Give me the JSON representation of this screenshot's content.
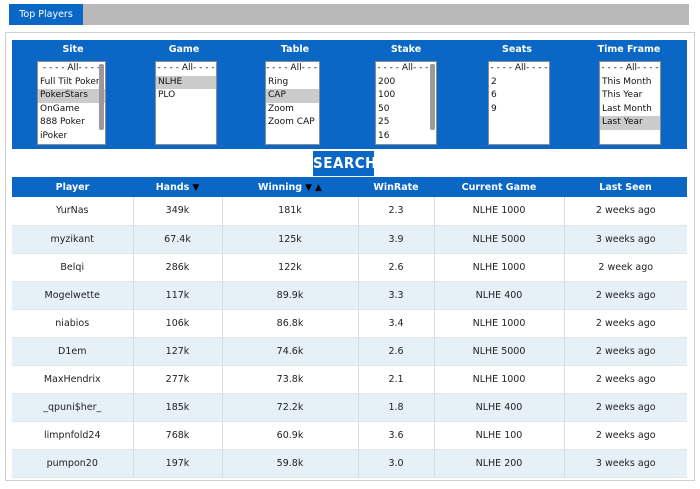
{
  "tab": {
    "label": "Top Players"
  },
  "filters": [
    {
      "label": "Site",
      "all": "- - - - All- - - -",
      "options": [
        "Full Tilt Poker",
        "PokerStars",
        "OnGame",
        "888 Poker",
        "iPoker"
      ],
      "selected": [
        1
      ],
      "scrollbar": true
    },
    {
      "label": "Game",
      "all": "- - - - All- - - -",
      "options": [
        "NLHE",
        "PLO"
      ],
      "selected": [
        0
      ],
      "scrollbar": false
    },
    {
      "label": "Table",
      "all": "- - - - All- - - -",
      "options": [
        "Ring",
        "CAP",
        "Zoom",
        "Zoom CAP"
      ],
      "selected": [
        1
      ],
      "scrollbar": false
    },
    {
      "label": "Stake",
      "all": "- - - - All- - - -",
      "options": [
        "200",
        "100",
        "50",
        "25",
        "16"
      ],
      "selected": [],
      "scrollbar": true
    },
    {
      "label": "Seats",
      "all": "- - - - All- - - -",
      "options": [
        "2",
        "6",
        "9"
      ],
      "selected": [],
      "scrollbar": false
    },
    {
      "label": "Time Frame",
      "all": "- - - - All- - - -",
      "options": [
        "This Month",
        "This Year",
        "Last Month",
        "Last Year"
      ],
      "selected": [
        3
      ],
      "scrollbar": false
    }
  ],
  "search": {
    "label": "SEARCH"
  },
  "table": {
    "headers": {
      "player": "Player",
      "hands": "Hands",
      "winning": "Winning",
      "winrate": "WinRate",
      "game": "Current Game",
      "seen": "Last Seen"
    },
    "sort_down": "▼",
    "sort_up": "▲",
    "rows": [
      {
        "player": "YurNas",
        "hands": "349k",
        "winning": "181k",
        "winrate": "2.3",
        "game": "NLHE 1000",
        "seen": "2 weeks ago"
      },
      {
        "player": "myzikant",
        "hands": "67.4k",
        "winning": "125k",
        "winrate": "3.9",
        "game": "NLHE 5000",
        "seen": "3 weeks ago"
      },
      {
        "player": "Belqi",
        "hands": "286k",
        "winning": "122k",
        "winrate": "2.6",
        "game": "NLHE 1000",
        "seen": "2 week ago"
      },
      {
        "player": "Mogelwette",
        "hands": "117k",
        "winning": "89.9k",
        "winrate": "3.3",
        "game": "NLHE 400",
        "seen": "2 weeks ago"
      },
      {
        "player": "niabios",
        "hands": "106k",
        "winning": "86.8k",
        "winrate": "3.4",
        "game": "NLHE 1000",
        "seen": "2 weeks ago"
      },
      {
        "player": "D1em",
        "hands": "127k",
        "winning": "74.6k",
        "winrate": "2.6",
        "game": "NLHE 5000",
        "seen": "2 weeks ago"
      },
      {
        "player": "MaxHendrix",
        "hands": "277k",
        "winning": "73.8k",
        "winrate": "2.1",
        "game": "NLHE 1000",
        "seen": "2 weeks ago"
      },
      {
        "player": "_qpuni$her_",
        "hands": "185k",
        "winning": "72.2k",
        "winrate": "1.8",
        "game": "NLHE 400",
        "seen": "2 weeks ago"
      },
      {
        "player": "limpnfold24",
        "hands": "768k",
        "winning": "60.9k",
        "winrate": "3.6",
        "game": "NLHE 100",
        "seen": "2 weeks ago"
      },
      {
        "player": "pumpon20",
        "hands": "197k",
        "winning": "59.8k",
        "winrate": "3.0",
        "game": "NLHE 200",
        "seen": "3 weeks ago"
      }
    ]
  }
}
